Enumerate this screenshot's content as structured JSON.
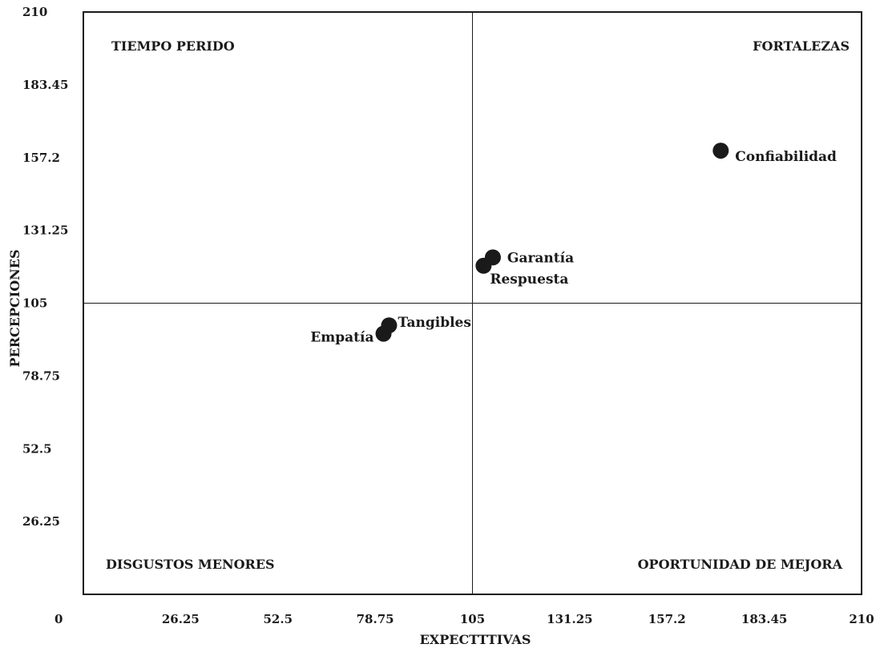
{
  "chart_data": {
    "type": "scatter",
    "title": "",
    "xlabel": "EXPECTTTIVAS",
    "ylabel": "PERCEPCIONES",
    "xlim": [
      0,
      210
    ],
    "ylim": [
      0,
      210
    ],
    "x_divider": 105,
    "y_divider": 105,
    "x_ticks": [
      "0",
      "26.25",
      "52.5",
      "78.75",
      "105",
      "131.25",
      "157.2",
      "183.45",
      "210"
    ],
    "y_ticks": [
      "210",
      "183.45",
      "157.2",
      "131.25",
      "105",
      "78.75",
      "52.5",
      "26.25"
    ],
    "quadrants": {
      "top_left": "TIEMPO PERIDO",
      "top_right": "FORTALEZAS",
      "bottom_left": "DISGUSTOS MENORES",
      "bottom_right": "OPORTUNIDAD DE MEJORA"
    },
    "points": [
      {
        "label": "Confiabilidad",
        "x": 172,
        "y": 160
      },
      {
        "label": "Garantía",
        "x": 110.5,
        "y": 121.5
      },
      {
        "label": "Respuesta",
        "x": 108,
        "y": 118.5
      },
      {
        "label": "Tangibles",
        "x": 82.5,
        "y": 97
      },
      {
        "label": "Empatía",
        "x": 81,
        "y": 94
      }
    ],
    "grid": false,
    "marker_color": "#1a1a1a"
  }
}
